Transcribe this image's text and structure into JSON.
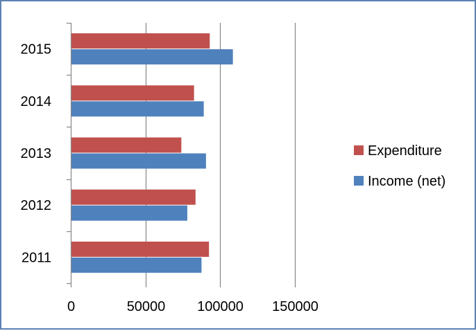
{
  "chart_data": {
    "type": "bar",
    "orientation": "horizontal",
    "categories": [
      "2011",
      "2012",
      "2013",
      "2014",
      "2015"
    ],
    "series": [
      {
        "name": "Income (net)",
        "color": "#4f81bd",
        "values": [
          87500,
          78000,
          90500,
          89000,
          108500
        ]
      },
      {
        "name": "Expenditure",
        "color": "#c0504d",
        "values": [
          92500,
          83500,
          74000,
          82500,
          93000
        ]
      }
    ],
    "x_ticks": [
      "0",
      "50000",
      "100000",
      "150000"
    ],
    "xlim": [
      0,
      150000
    ],
    "grid": "vertical gridlines",
    "legend": {
      "position": "right",
      "entries": [
        "Expenditure",
        "Income (net)"
      ]
    },
    "title": "",
    "xlabel": "",
    "ylabel": ""
  }
}
